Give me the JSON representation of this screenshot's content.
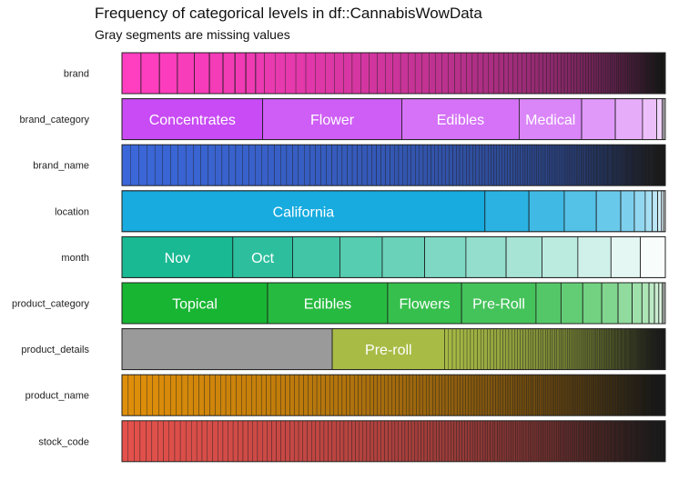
{
  "title": "Frequency of categorical levels in df::CannabisWowData",
  "subtitle": "Gray segments are missing values",
  "chart_data": {
    "type": "bar",
    "orientation": "horizontal",
    "stacked": true,
    "normalized": true,
    "variables": [
      {
        "name": "brand",
        "base_color": "#ff3ec0",
        "dark_color": "#121212",
        "missing": 0,
        "segments": [
          {
            "label": "",
            "value": 0.035
          },
          {
            "label": "",
            "value": 0.034
          },
          {
            "label": "",
            "value": 0.033
          },
          {
            "label": "",
            "value": 0.031
          },
          {
            "label": "",
            "value": 0.028
          },
          {
            "label": "",
            "value": 0.025
          },
          {
            "label": "",
            "value": 0.022
          },
          {
            "label": "",
            "value": 0.02
          },
          {
            "label": "",
            "value": 0.018
          },
          {
            "label": "",
            "value": 0.016
          }
        ],
        "tail": {
          "count": 105,
          "total": 0.738,
          "decay": 0.975
        }
      },
      {
        "name": "brand_category",
        "base_color": "#c94bf5",
        "light": true,
        "missing": 0,
        "segments": [
          {
            "label": "Concentrates",
            "value": 0.259
          },
          {
            "label": "Flower",
            "value": 0.256
          },
          {
            "label": "Edibles",
            "value": 0.216
          },
          {
            "label": "Medical",
            "value": 0.115
          },
          {
            "label": "",
            "value": 0.062
          },
          {
            "label": "",
            "value": 0.05
          },
          {
            "label": "",
            "value": 0.026
          },
          {
            "label": "",
            "value": 0.01
          },
          {
            "label": "",
            "value": 0.003
          },
          {
            "label": "",
            "value": 0.003
          }
        ]
      },
      {
        "name": "brand_name",
        "base_color": "#3b67d9",
        "dark_color": "#151515",
        "missing": 0,
        "segments": [],
        "tail": {
          "count": 230,
          "total": 1.0,
          "decay": 0.985
        }
      },
      {
        "name": "location",
        "base_color": "#17abdf",
        "light": true,
        "missing": 0,
        "segments": [
          {
            "label": "California",
            "value": 0.668
          },
          {
            "label": "",
            "value": 0.081
          },
          {
            "label": "",
            "value": 0.065
          },
          {
            "label": "",
            "value": 0.059
          },
          {
            "label": "",
            "value": 0.045
          },
          {
            "label": "",
            "value": 0.025
          },
          {
            "label": "",
            "value": 0.02
          },
          {
            "label": "",
            "value": 0.013
          },
          {
            "label": "",
            "value": 0.01
          },
          {
            "label": "",
            "value": 0.007
          },
          {
            "label": "",
            "value": 0.004
          },
          {
            "label": "",
            "value": 0.003
          }
        ]
      },
      {
        "name": "month",
        "base_color": "#19b993",
        "light": true,
        "missing": 0,
        "segments": [
          {
            "label": "Nov",
            "value": 0.204
          },
          {
            "label": "Oct",
            "value": 0.11
          },
          {
            "label": "",
            "value": 0.087
          },
          {
            "label": "",
            "value": 0.078
          },
          {
            "label": "",
            "value": 0.078
          },
          {
            "label": "",
            "value": 0.076
          },
          {
            "label": "",
            "value": 0.074
          },
          {
            "label": "",
            "value": 0.066
          },
          {
            "label": "",
            "value": 0.066
          },
          {
            "label": "",
            "value": 0.061
          },
          {
            "label": "",
            "value": 0.054
          },
          {
            "label": "",
            "value": 0.046
          }
        ]
      },
      {
        "name": "product_category",
        "base_color": "#18b533",
        "light": true,
        "missing": 0,
        "segments": [
          {
            "label": "Topical",
            "value": 0.268
          },
          {
            "label": "Edibles",
            "value": 0.221
          },
          {
            "label": "Flowers",
            "value": 0.136
          },
          {
            "label": "Pre-Roll",
            "value": 0.137
          },
          {
            "label": "",
            "value": 0.046
          },
          {
            "label": "",
            "value": 0.04
          },
          {
            "label": "",
            "value": 0.035
          },
          {
            "label": "",
            "value": 0.03
          },
          {
            "label": "",
            "value": 0.026
          },
          {
            "label": "",
            "value": 0.018
          },
          {
            "label": "",
            "value": 0.013
          },
          {
            "label": "",
            "value": 0.01
          },
          {
            "label": "",
            "value": 0.008
          },
          {
            "label": "",
            "value": 0.006
          },
          {
            "label": "",
            "value": 0.003
          },
          {
            "label": "",
            "value": 0.003
          }
        ]
      },
      {
        "name": "product_details",
        "base_color": "#a8bb45",
        "dark_color": "#121212",
        "missing": 0.387,
        "segments": [
          {
            "label": "Pre-roll",
            "value": 0.207
          }
        ],
        "tail": {
          "count": 130,
          "total": 0.406,
          "decay": 0.985
        }
      },
      {
        "name": "product_name",
        "base_color": "#df8f0a",
        "dark_color": "#141414",
        "missing": 0,
        "segments": [],
        "tail": {
          "count": 200,
          "total": 1.0,
          "decay": 0.99
        }
      },
      {
        "name": "stock_code",
        "base_color": "#e5514c",
        "dark_color": "#151515",
        "missing": 0,
        "segments": [],
        "tail": {
          "count": 220,
          "total": 1.0,
          "decay": 0.99
        }
      }
    ]
  }
}
